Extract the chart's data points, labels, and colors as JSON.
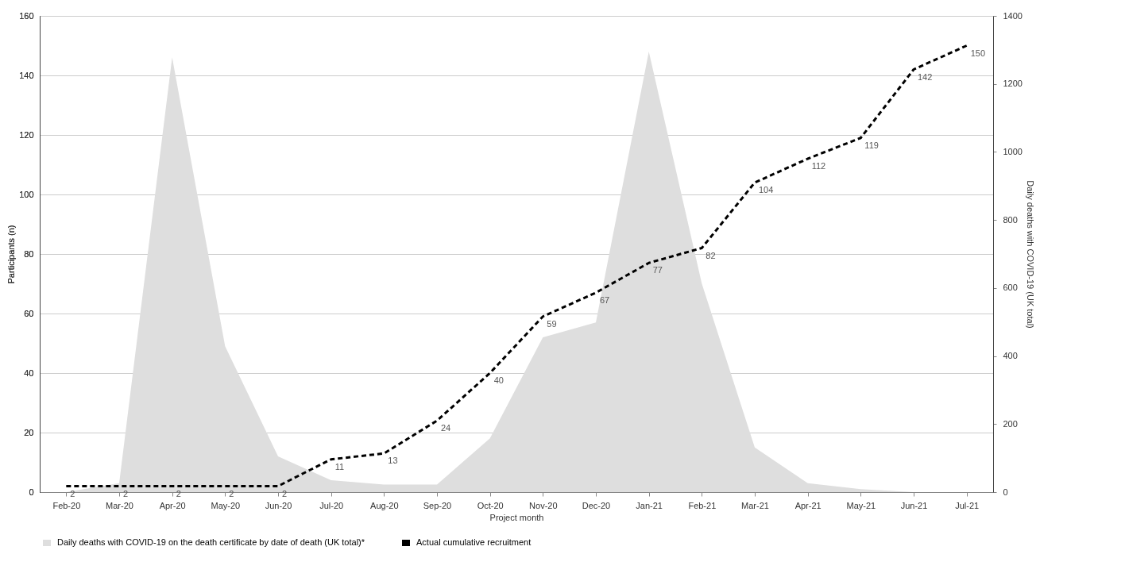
{
  "chart_data": {
    "type": "line",
    "xlabel": "Project month",
    "ylabel": "Participants (n)",
    "y2label": "Daily deaths with COVID-19 (UK total)",
    "categories": [
      "Feb-20",
      "Mar-20",
      "Apr-20",
      "May-20",
      "Jun-20",
      "Jul-20",
      "Aug-20",
      "Sep-20",
      "Oct-20",
      "Nov-20",
      "Dec-20",
      "Jan-21",
      "Feb-21",
      "Mar-21",
      "Apr-21",
      "May-21",
      "Jun-21",
      "Jul-21"
    ],
    "ylim": [
      0,
      160
    ],
    "yticks": [
      0,
      20,
      40,
      60,
      80,
      100,
      120,
      140,
      160
    ],
    "y2lim": [
      0,
      1400
    ],
    "y2ticks": [
      0,
      200,
      400,
      600,
      800,
      1000,
      1200,
      1400
    ],
    "grid": "y",
    "legend": "bottom",
    "series": [
      {
        "name": "Daily deaths with COVID-19 on the death certificate by date of death (UK total)*",
        "type": "area",
        "axis": "y2",
        "color": "#dedede",
        "values": [
          0,
          26,
          1278,
          429,
          105,
          35,
          22,
          22,
          158,
          455,
          499,
          1295,
          613,
          131,
          26,
          9,
          0,
          0
        ]
      },
      {
        "name": "Actual cumulative recruitment",
        "line_style": "dashed",
        "color": "#000000",
        "values": [
          2,
          2,
          2,
          2,
          2,
          11,
          13,
          24,
          40,
          59,
          67,
          77,
          82,
          104,
          112,
          119,
          142,
          150
        ],
        "value_labels": [
          "2",
          "2",
          "2",
          "2",
          "2",
          "11",
          "13",
          "24",
          "40",
          "59",
          "67",
          "77",
          "82",
          "104",
          "112",
          "119",
          "142",
          "150"
        ]
      }
    ]
  }
}
